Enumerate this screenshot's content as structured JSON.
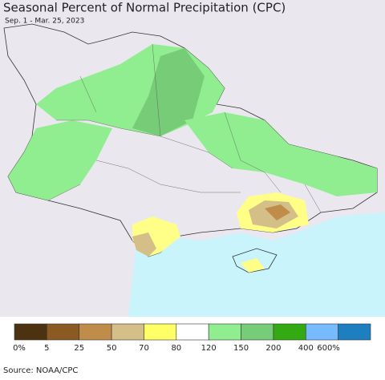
{
  "header": {
    "title": "Seasonal Percent of Normal Precipitation (CPC)",
    "subtitle": "Sep. 1 - Mar. 25, 2023"
  },
  "legend": {
    "colors": [
      "#4d3211",
      "#8b5a23",
      "#c08c4a",
      "#d4bf88",
      "#ffff66",
      "#ffffff",
      "#90ee90",
      "#77cc77",
      "#33aa11",
      "#77bbff",
      "#1e7fc0"
    ],
    "labels": [
      "0%",
      "5",
      "25",
      "50",
      "70",
      "80",
      "120",
      "150",
      "200",
      "400",
      "600%"
    ]
  },
  "footer": {
    "source": "Source: NOAA/CPC"
  }
}
